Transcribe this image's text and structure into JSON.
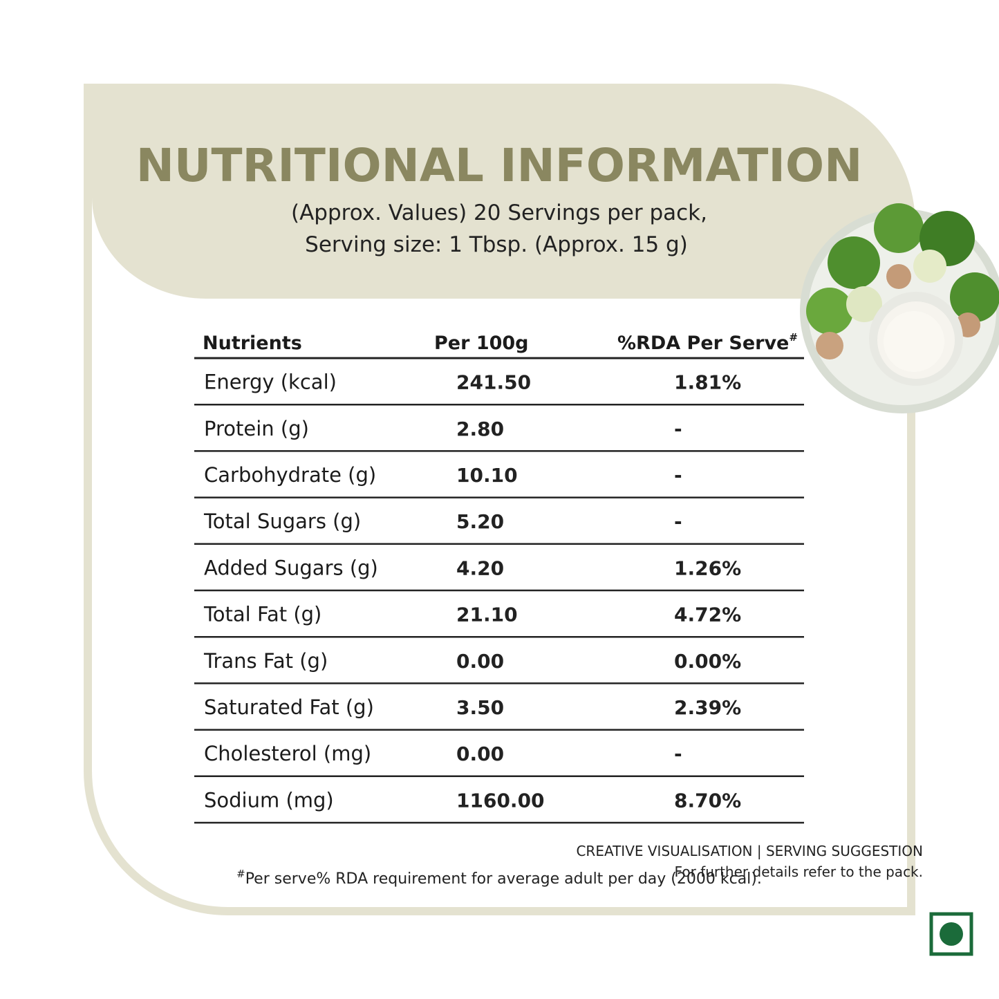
{
  "header": {
    "title": "NUTRITIONAL INFORMATION",
    "subtitle": [
      "(Approx. Values) 20 Servings per pack,",
      "Serving size: 1 Tbsp. (Approx. 15 g)"
    ]
  },
  "table": {
    "columns": [
      "Nutrients",
      "Per 100g",
      "%RDA Per Serve"
    ],
    "column_mark": "#",
    "rows": [
      [
        "Energy (kcal)",
        "241.50",
        "1.81%"
      ],
      [
        "Protein (g)",
        "2.80",
        "-"
      ],
      [
        "Carbohydrate (g)",
        "10.10",
        "-"
      ],
      [
        "Total Sugars (g)",
        "5.20",
        "-"
      ],
      [
        "Added Sugars (g)",
        "4.20",
        "1.26%"
      ],
      [
        "Total Fat (g)",
        "21.10",
        "4.72%"
      ],
      [
        "Trans Fat (g)",
        "0.00",
        "0.00%"
      ],
      [
        "Saturated Fat (g)",
        "3.50",
        "2.39%"
      ],
      [
        "Cholesterol (mg)",
        "0.00",
        "-"
      ],
      [
        "Sodium (mg)",
        "1160.00",
        "8.70%"
      ]
    ]
  },
  "footnote": {
    "mark": "#",
    "text": "Per serve% RDA requirement for average adult per day (2000 kcal)."
  },
  "disclaimer": {
    "line1": "CREATIVE  VISUALISATION | SERVING  SUGGESTION",
    "line2": "For further details refer to the pack."
  }
}
